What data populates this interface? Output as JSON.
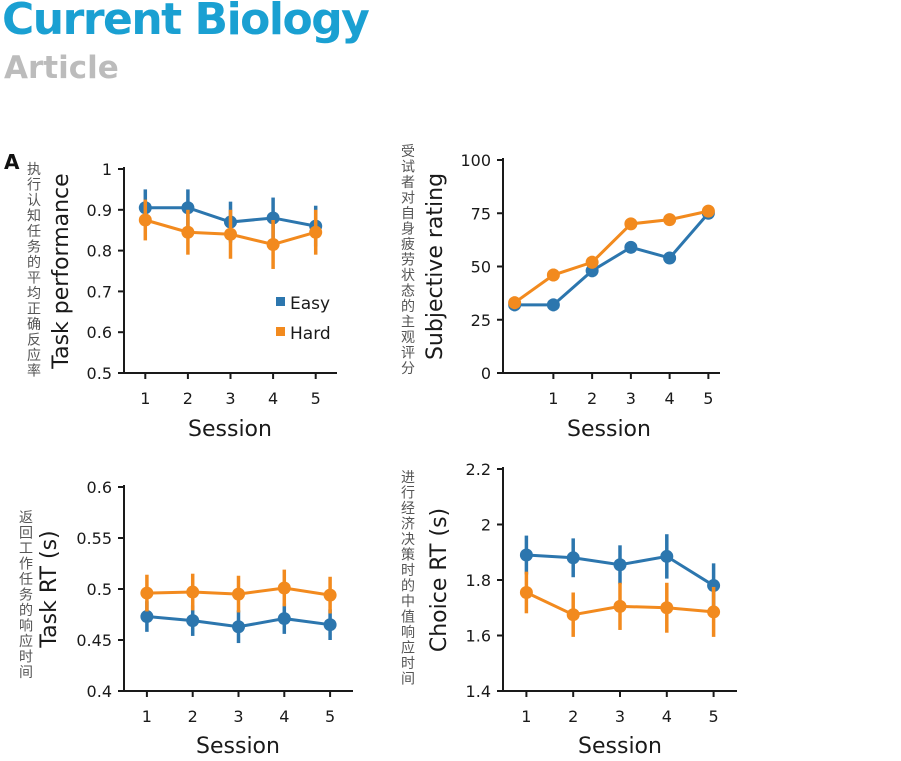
{
  "header": {
    "journal": "Current Biology",
    "type": "Article"
  },
  "panel_label": "A",
  "colors": {
    "easy": "#2c76ae",
    "hard": "#f28a1e",
    "axis": "#1a1a1a"
  },
  "legend": {
    "easy": "Easy",
    "hard": "Hard"
  },
  "chart_data": [
    {
      "type": "line",
      "title": "",
      "xlabel": "Session",
      "ylabel": "Task performance",
      "ylabel_cn": "执行认知任务的平均正确反应率",
      "x": [
        1,
        2,
        3,
        4,
        5
      ],
      "xlim": [
        0.5,
        5.5
      ],
      "ylim": [
        0.5,
        1.0
      ],
      "yticks": [
        "0.5",
        "0.6",
        "0.7",
        "0.8",
        "0.9",
        "1"
      ],
      "series": [
        {
          "name": "Easy",
          "values": [
            0.905,
            0.905,
            0.87,
            0.88,
            0.86
          ],
          "err": [
            0.045,
            0.045,
            0.05,
            0.05,
            0.05
          ]
        },
        {
          "name": "Hard",
          "values": [
            0.875,
            0.845,
            0.84,
            0.815,
            0.845
          ],
          "err": [
            0.05,
            0.055,
            0.06,
            0.06,
            0.055
          ]
        }
      ]
    },
    {
      "type": "line",
      "title": "",
      "xlabel": "Session",
      "ylabel": "Subjective rating",
      "ylabel_cn": "受试者对自身疲劳状态的主观评分",
      "x": [
        0,
        1,
        2,
        3,
        4,
        5
      ],
      "xlim": [
        -0.3,
        5.3
      ],
      "xticks": [
        "1",
        "2",
        "3",
        "4",
        "5"
      ],
      "ylim": [
        0,
        100
      ],
      "yticks": [
        "0",
        "25",
        "50",
        "75",
        "100"
      ],
      "series": [
        {
          "name": "Easy",
          "values": [
            32,
            32,
            48,
            59,
            54,
            75
          ],
          "err": [
            3,
            3,
            3,
            2.5,
            2.5,
            2
          ]
        },
        {
          "name": "Hard",
          "values": [
            33,
            46,
            52,
            70,
            72,
            76
          ],
          "err": [
            3,
            3,
            3,
            2.5,
            2,
            2
          ]
        }
      ]
    },
    {
      "type": "line",
      "title": "",
      "xlabel": "Session",
      "ylabel": "Task RT (s)",
      "ylabel_cn": "返回工作任务的响应时间",
      "x": [
        1,
        2,
        3,
        4,
        5
      ],
      "xlim": [
        0.5,
        5.5
      ],
      "ylim": [
        0.4,
        0.6
      ],
      "yticks": [
        "0.4",
        "0.45",
        "0.5",
        "0.55",
        "0.6"
      ],
      "series": [
        {
          "name": "Easy",
          "values": [
            0.473,
            0.469,
            0.463,
            0.471,
            0.465
          ],
          "err": [
            0.015,
            0.015,
            0.016,
            0.015,
            0.015
          ]
        },
        {
          "name": "Hard",
          "values": [
            0.496,
            0.497,
            0.495,
            0.501,
            0.494
          ],
          "err": [
            0.018,
            0.018,
            0.018,
            0.018,
            0.018
          ]
        }
      ]
    },
    {
      "type": "line",
      "title": "",
      "xlabel": "Session",
      "ylabel": "Choice RT (s)",
      "ylabel_cn": "进行经济决策时的中值响应时间",
      "x": [
        1,
        2,
        3,
        4,
        5
      ],
      "xlim": [
        0.5,
        5.5
      ],
      "ylim": [
        1.4,
        2.2
      ],
      "yticks": [
        "1.4",
        "1.6",
        "1.8",
        "2",
        "2.2"
      ],
      "series": [
        {
          "name": "Easy",
          "values": [
            1.89,
            1.88,
            1.855,
            1.885,
            1.78
          ],
          "err": [
            0.07,
            0.07,
            0.07,
            0.08,
            0.08
          ]
        },
        {
          "name": "Hard",
          "values": [
            1.755,
            1.675,
            1.705,
            1.7,
            1.685
          ],
          "err": [
            0.075,
            0.08,
            0.085,
            0.09,
            0.09
          ]
        }
      ]
    }
  ]
}
